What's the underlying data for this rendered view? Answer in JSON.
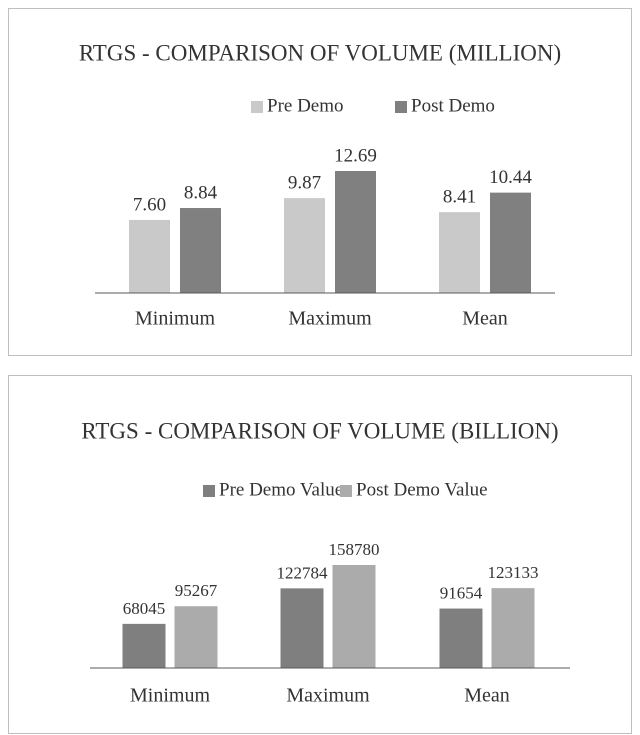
{
  "chart_data": [
    {
      "type": "bar",
      "title": "RTGS - COMPARISON OF VOLUME (MILLION)",
      "categories": [
        "Minimum",
        "Maximum",
        "Mean"
      ],
      "series": [
        {
          "name": "Pre Demo",
          "color": "#c9c9c9",
          "values": [
            7.6,
            9.87,
            8.41
          ],
          "value_labels": [
            "7.60",
            "9.87",
            "8.41"
          ]
        },
        {
          "name": "Post Demo",
          "color": "#808080",
          "values": [
            8.84,
            12.69,
            10.44
          ]
        }
      ]
    },
    {
      "type": "bar",
      "title": "RTGS - COMPARISON OF VOLUME (BILLION)",
      "categories": [
        "Minimum",
        "Maximum",
        "Mean"
      ],
      "series": [
        {
          "name": "Pre Demo Value",
          "color": "#7f7f7f",
          "values": [
            68045,
            122784,
            91654
          ]
        },
        {
          "name": "Post Demo Value",
          "color": "#ababab",
          "values": [
            95267,
            158780,
            123133
          ]
        }
      ]
    }
  ]
}
